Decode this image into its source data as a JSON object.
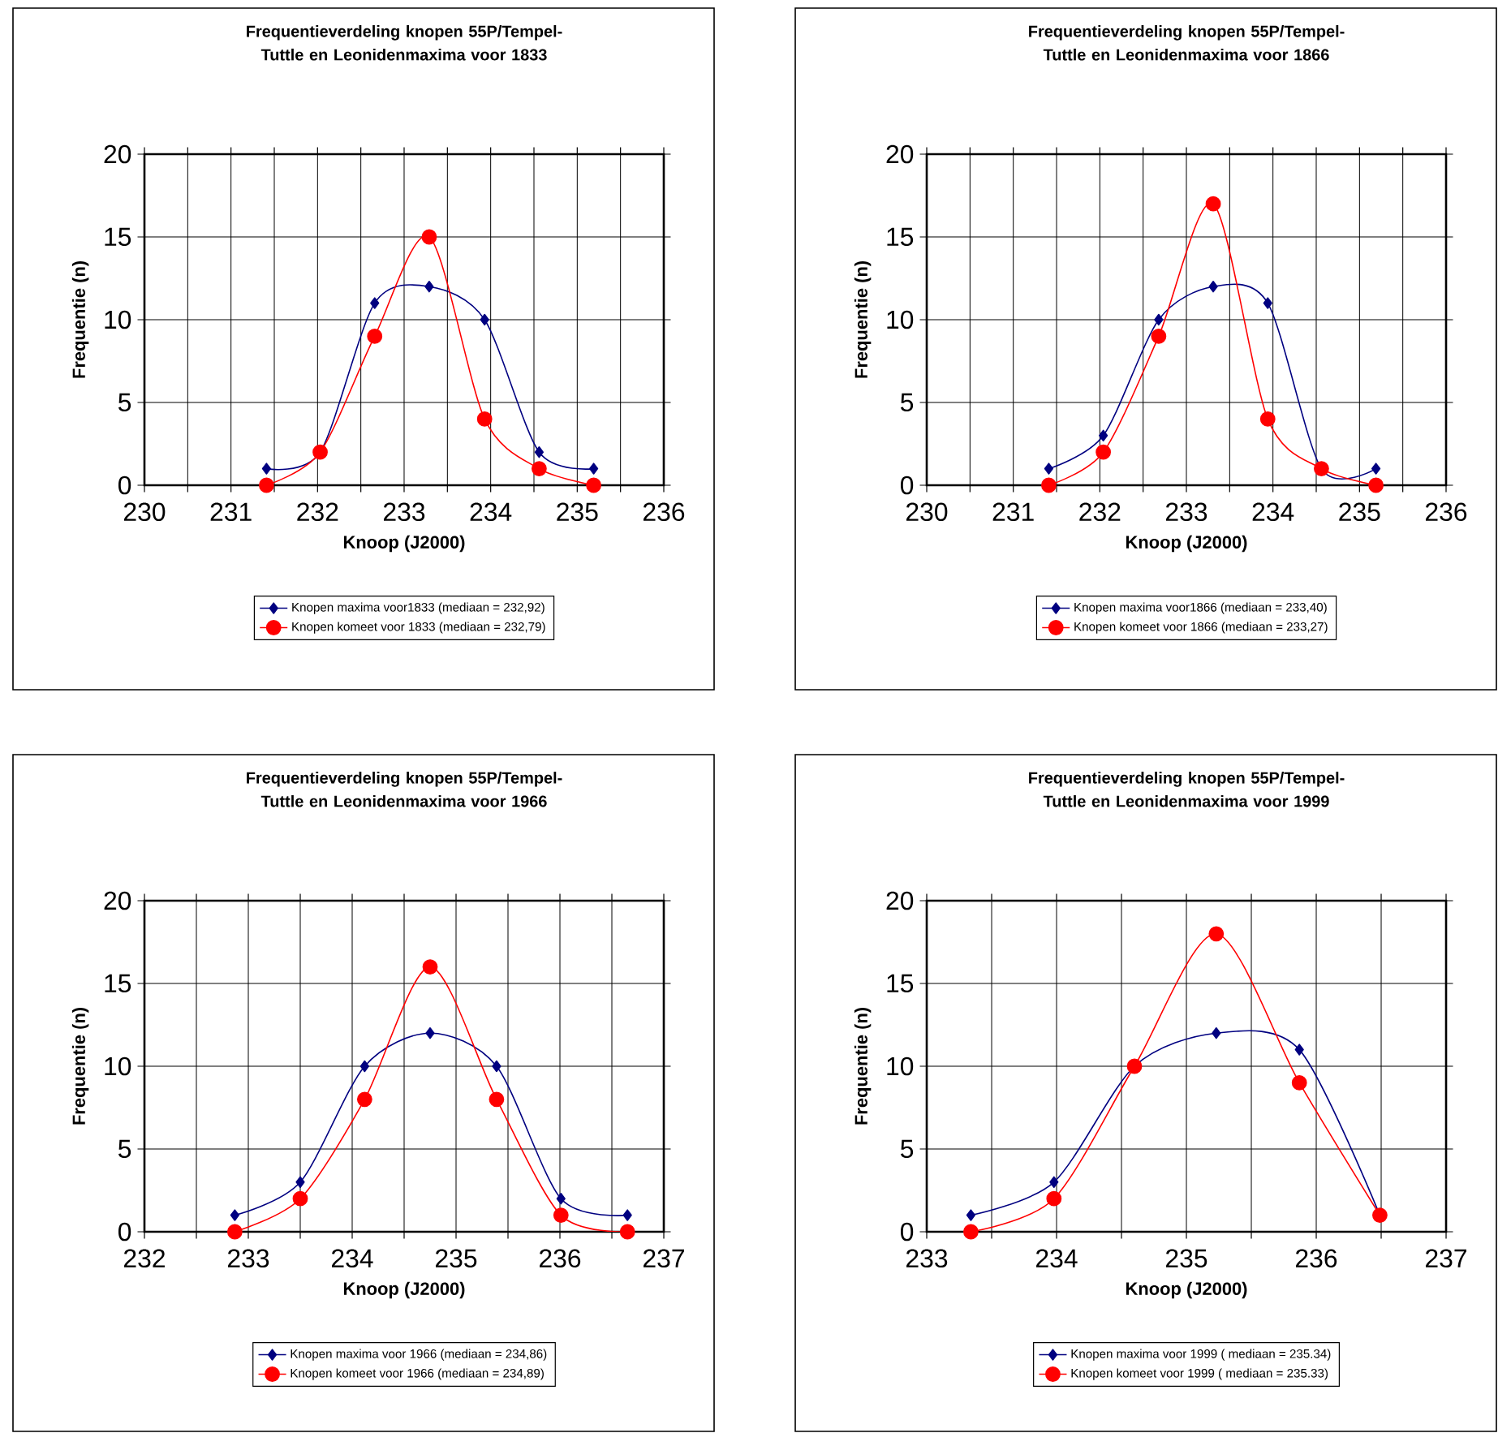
{
  "chart_data": [
    {
      "type": "line",
      "title": "Frequentieverdeling knopen 55P/Tempel-Tuttle en Leonidenmaxima voor 1833",
      "xlabel": "Knoop (J2000)",
      "ylabel": "Frequentie (n)",
      "xlim": [
        230,
        236
      ],
      "ylim": [
        0,
        20
      ],
      "xticks": [
        230,
        {
          "value": 230.5,
          "label": null
        },
        231,
        {
          "value": 231.5,
          "label": null
        },
        232,
        {
          "value": 232.5,
          "label": null
        },
        233,
        {
          "value": 233.5,
          "label": null
        },
        234,
        {
          "value": 234.5,
          "label": null
        },
        235,
        {
          "value": 235.5,
          "label": null
        },
        236
      ],
      "yticks": [
        0,
        5,
        10,
        15,
        20
      ],
      "grid": true,
      "legend": "bottom",
      "line_style": "solid",
      "x": [
        231.41,
        232.03,
        232.66,
        233.29,
        233.93,
        234.56,
        235.19
      ],
      "series": [
        {
          "name": "Knopen maxima voor1833 (mediaan = 232,92)",
          "color": "#000080",
          "marker": "diamond",
          "values": [
            1,
            2,
            11,
            12,
            10,
            2,
            1
          ]
        },
        {
          "name": "Knopen komeet voor 1833 (mediaan = 232,79)",
          "color": "#ff0000",
          "marker": "circle",
          "values": [
            0,
            2,
            9,
            15,
            4,
            1,
            0
          ]
        }
      ]
    },
    {
      "type": "line",
      "title": "Frequentieverdeling knopen 55P/Tempel-Tuttle en Leonidenmaxima voor 1866",
      "xlabel": "Knoop (J2000)",
      "ylabel": "Frequentie (n)",
      "xlim": [
        230,
        236
      ],
      "ylim": [
        0,
        20
      ],
      "xticks": [
        230,
        {
          "value": 230.5,
          "label": null
        },
        231,
        {
          "value": 231.5,
          "label": null
        },
        232,
        {
          "value": 232.5,
          "label": null
        },
        233,
        {
          "value": 233.5,
          "label": null
        },
        234,
        {
          "value": 234.5,
          "label": null
        },
        235,
        {
          "value": 235.5,
          "label": null
        },
        236
      ],
      "yticks": [
        0,
        5,
        10,
        15,
        20
      ],
      "grid": true,
      "legend": "bottom",
      "line_style": "solid",
      "x": [
        231.41,
        232.04,
        232.68,
        233.31,
        233.94,
        234.56,
        235.19
      ],
      "series": [
        {
          "name": "Knopen maxima voor1866 (mediaan = 233,40)",
          "color": "#000080",
          "marker": "diamond",
          "values": [
            1,
            3,
            10,
            12,
            11,
            1,
            1
          ]
        },
        {
          "name": "Knopen komeet voor 1866 (mediaan = 233,27)",
          "color": "#ff0000",
          "marker": "circle",
          "values": [
            0,
            2,
            9,
            17,
            4,
            1,
            0
          ]
        }
      ]
    },
    {
      "type": "line",
      "title": "Frequentieverdeling knopen 55P/Tempel-Tuttle en Leonidenmaxima voor 1966",
      "xlabel": "Knoop (J2000)",
      "ylabel": "Frequentie (n)",
      "xlim": [
        232,
        237
      ],
      "ylim": [
        0,
        20
      ],
      "xticks": [
        232,
        {
          "value": 232.5,
          "label": null
        },
        233,
        {
          "value": 233.5,
          "label": null
        },
        234,
        {
          "value": 234.5,
          "label": null
        },
        235,
        {
          "value": 235.5,
          "label": null
        },
        236,
        {
          "value": 236.5,
          "label": null
        },
        237
      ],
      "yticks": [
        0,
        5,
        10,
        15,
        20
      ],
      "grid": true,
      "legend": "bottom",
      "line_style": "solid",
      "x": [
        232.87,
        233.5,
        234.12,
        234.75,
        235.39,
        236.01,
        236.65
      ],
      "series": [
        {
          "name": "Knopen maxima voor 1966 (mediaan = 234,86)",
          "color": "#000080",
          "marker": "diamond",
          "values": [
            1,
            3,
            10,
            12,
            10,
            2,
            1
          ]
        },
        {
          "name": "Knopen komeet voor 1966 (mediaan = 234,89)",
          "color": "#ff0000",
          "marker": "circle",
          "values": [
            0,
            2,
            8,
            16,
            8,
            1,
            0
          ]
        }
      ]
    },
    {
      "type": "line",
      "title": "Frequentieverdeling knopen 55P/Tempel-Tuttle en Leonidenmaxima voor 1999",
      "xlabel": "Knoop (J2000)",
      "ylabel": "Frequentie (n)",
      "xlim": [
        233,
        237
      ],
      "ylim": [
        0,
        20
      ],
      "xticks": [
        233,
        {
          "value": 233.5,
          "label": null
        },
        234,
        {
          "value": 234.5,
          "label": null
        },
        235,
        {
          "value": 235.5,
          "label": null
        },
        236,
        {
          "value": 236.5,
          "label": null
        },
        237
      ],
      "yticks": [
        0,
        5,
        10,
        15,
        20
      ],
      "grid": true,
      "legend": "bottom",
      "line_style": "solid",
      "x": [
        233.34,
        233.98,
        234.6,
        235.23,
        235.87,
        236.49
      ],
      "series": [
        {
          "name": "Knopen maxima voor 1999 ( mediaan = 235.34)",
          "color": "#000080",
          "marker": "diamond",
          "values": [
            1,
            3,
            10,
            12,
            11,
            1
          ]
        },
        {
          "name": "Knopen komeet voor 1999 ( mediaan = 235.33)",
          "color": "#ff0000",
          "marker": "circle",
          "values": [
            0,
            2,
            10,
            18,
            9,
            1
          ]
        }
      ]
    }
  ]
}
